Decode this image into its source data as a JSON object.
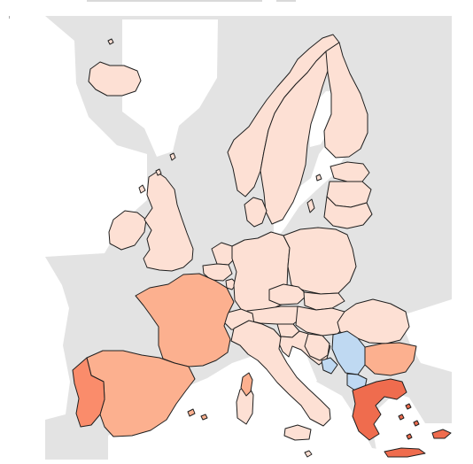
{
  "map": {
    "palette": {
      "non_data_land": "#e3e3e3",
      "light": "#fde0d4",
      "medium": "#fcb08f",
      "strong": "#fa8c6b",
      "strongest": "#ef6c4e",
      "blue": "#bfd9f2"
    },
    "regions": [
      {
        "id": "iceland",
        "color_key": "light"
      },
      {
        "id": "ireland",
        "color_key": "light"
      },
      {
        "id": "united_kingdom",
        "color_key": "light"
      },
      {
        "id": "norway",
        "color_key": "light"
      },
      {
        "id": "sweden",
        "color_key": "light"
      },
      {
        "id": "finland",
        "color_key": "light"
      },
      {
        "id": "estonia",
        "color_key": "light"
      },
      {
        "id": "latvia",
        "color_key": "light"
      },
      {
        "id": "lithuania",
        "color_key": "light"
      },
      {
        "id": "denmark",
        "color_key": "light"
      },
      {
        "id": "netherlands",
        "color_key": "light"
      },
      {
        "id": "belgium",
        "color_key": "light"
      },
      {
        "id": "luxembourg",
        "color_key": "light"
      },
      {
        "id": "germany",
        "color_key": "light"
      },
      {
        "id": "poland",
        "color_key": "light"
      },
      {
        "id": "czechia",
        "color_key": "light"
      },
      {
        "id": "slovakia",
        "color_key": "light"
      },
      {
        "id": "austria",
        "color_key": "light"
      },
      {
        "id": "switzerland",
        "color_key": "light"
      },
      {
        "id": "hungary",
        "color_key": "light"
      },
      {
        "id": "slovenia",
        "color_key": "light"
      },
      {
        "id": "croatia",
        "color_key": "light"
      },
      {
        "id": "bosnia",
        "color_key": "light"
      },
      {
        "id": "romania",
        "color_key": "light"
      },
      {
        "id": "italy",
        "color_key": "light"
      },
      {
        "id": "malta",
        "color_key": "light"
      },
      {
        "id": "france",
        "color_key": "medium"
      },
      {
        "id": "spain",
        "color_key": "medium"
      },
      {
        "id": "bulgaria",
        "color_key": "medium"
      },
      {
        "id": "portugal",
        "color_key": "strong"
      },
      {
        "id": "greece",
        "color_key": "strongest"
      },
      {
        "id": "cyprus",
        "color_key": "strongest"
      },
      {
        "id": "serbia",
        "color_key": "blue"
      },
      {
        "id": "montenegro",
        "color_key": "blue"
      },
      {
        "id": "north_macedonia",
        "color_key": "blue"
      }
    ]
  }
}
